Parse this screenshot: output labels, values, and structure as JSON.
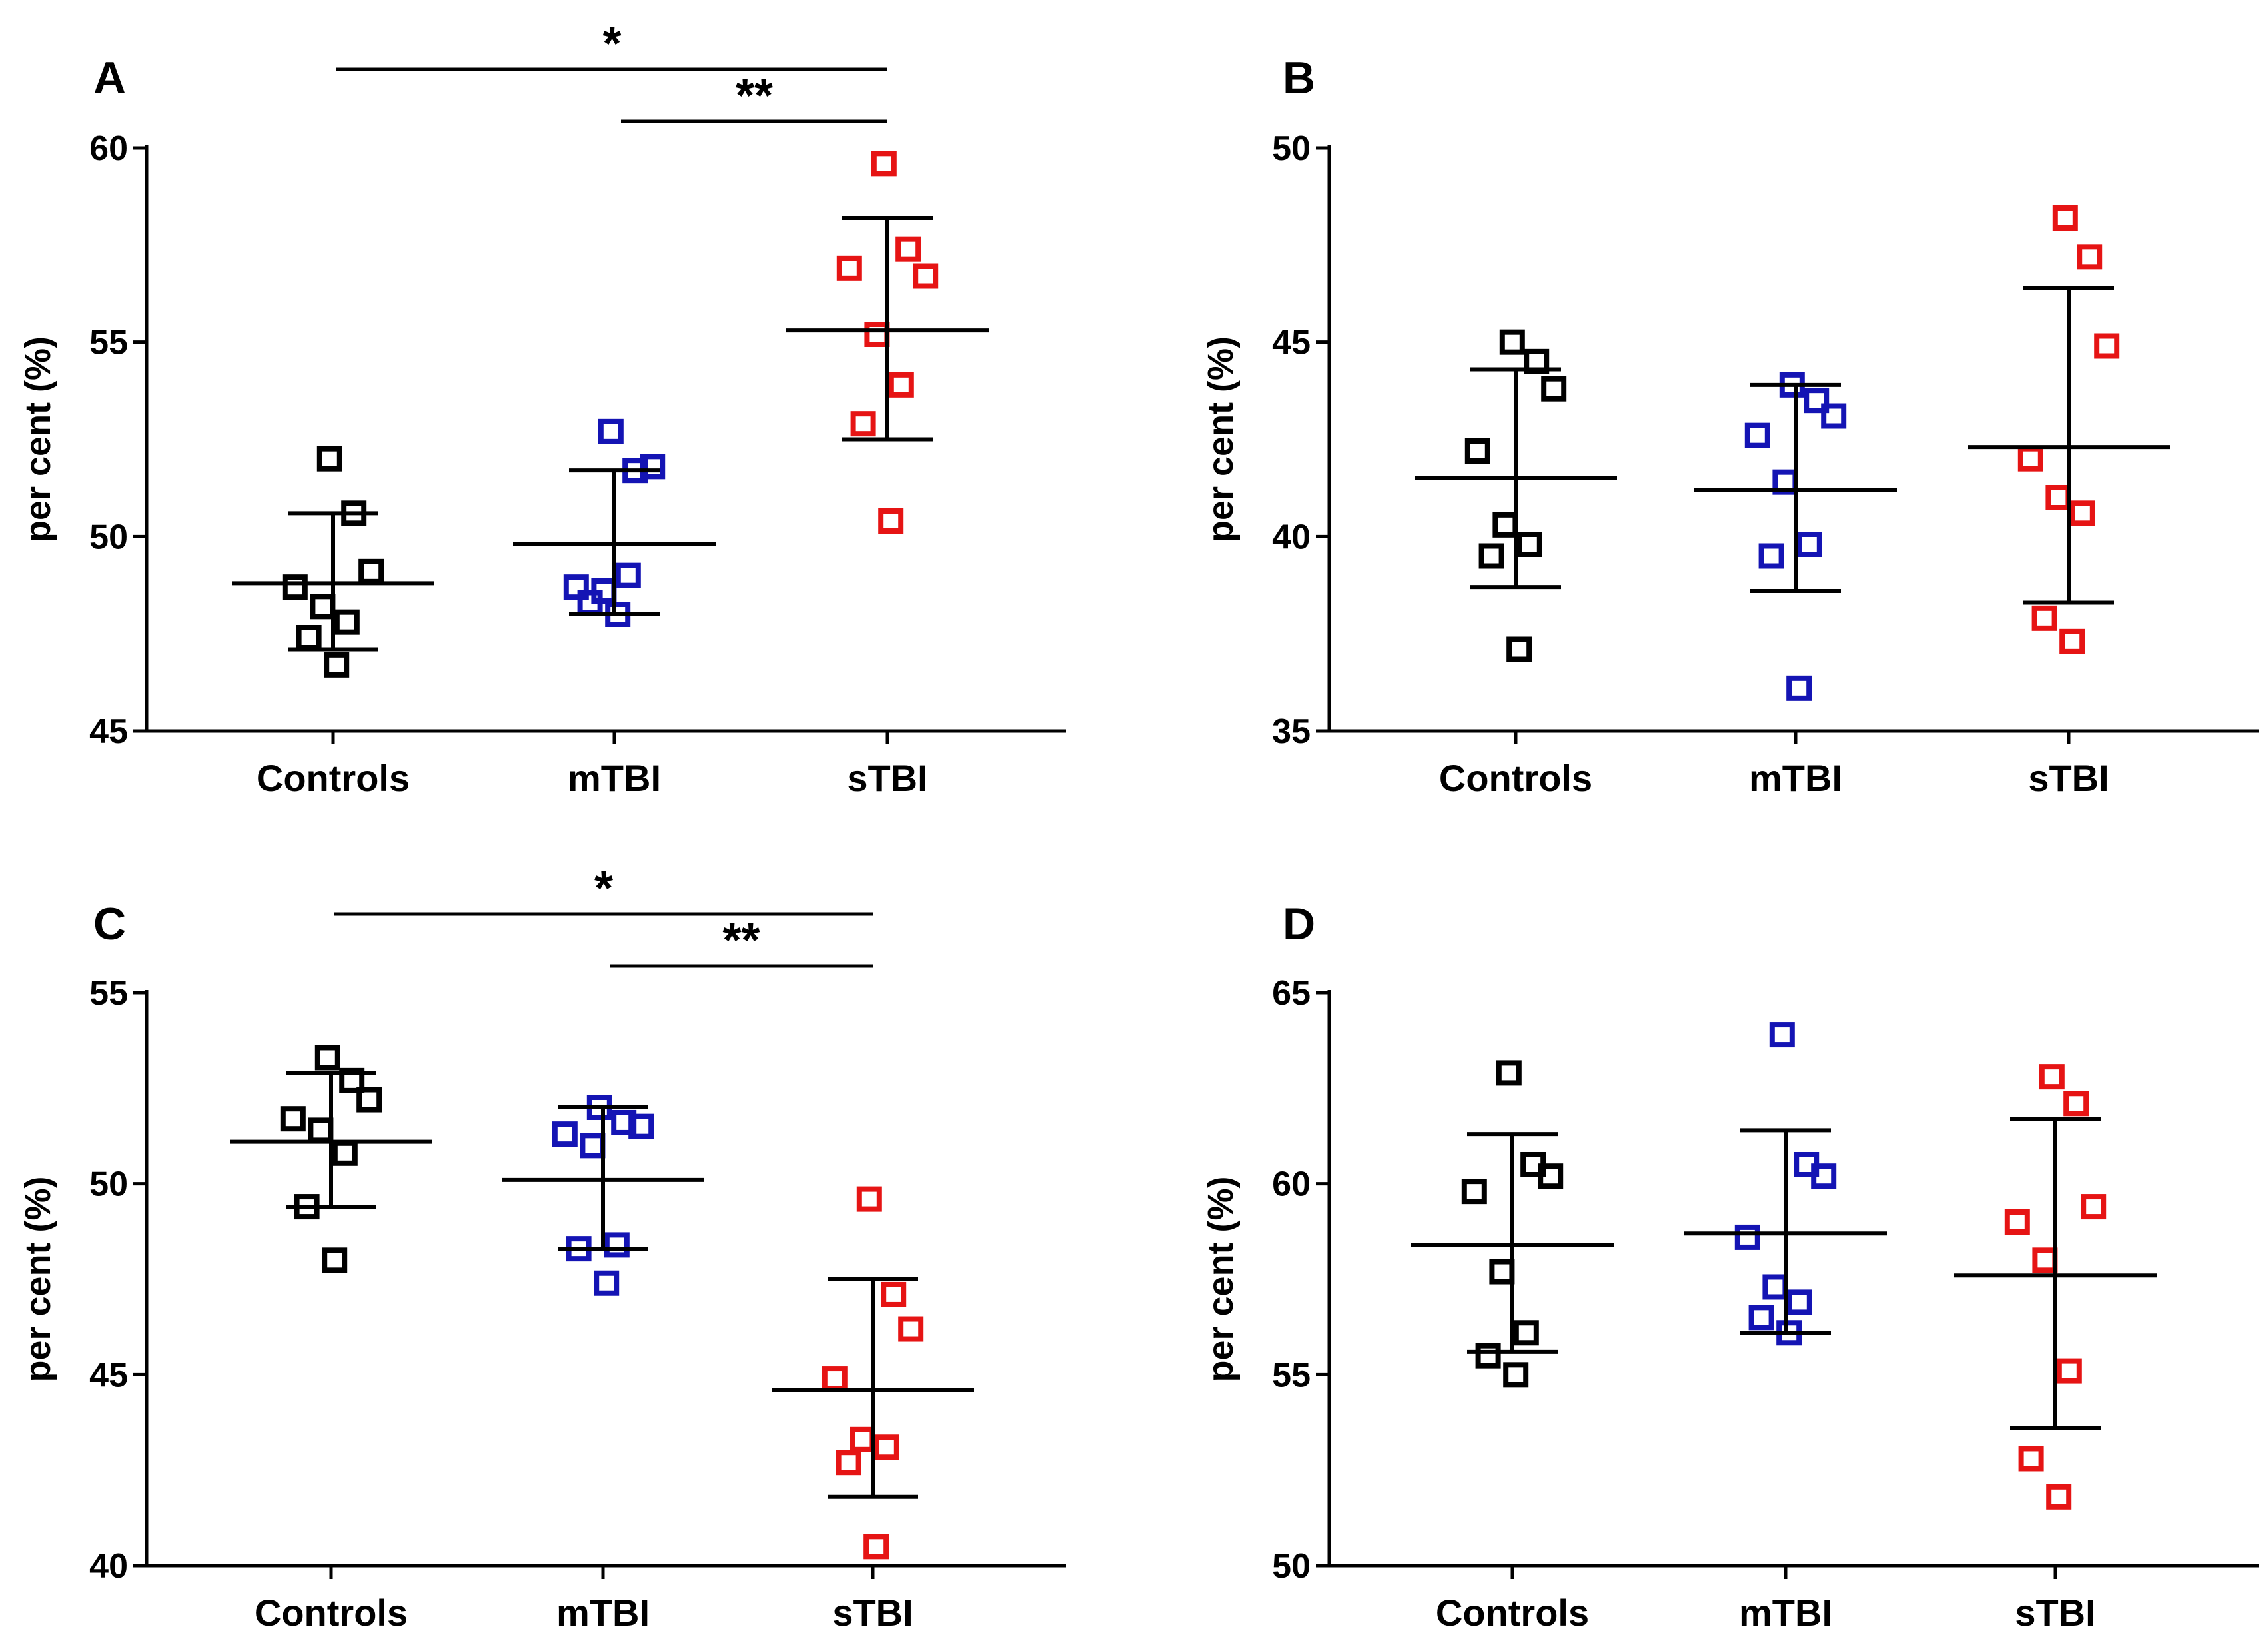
{
  "chart_data": [
    {
      "type": "scatter",
      "panel": "A",
      "ylabel": "per cent (%)",
      "ylim": [
        45,
        60
      ],
      "yticks": [
        45,
        50,
        55,
        60
      ],
      "categories": [
        "Controls",
        "mTBI",
        "sTBI"
      ],
      "series": [
        {
          "category": "Controls",
          "color": "#000000",
          "values": [
            52.0,
            50.6,
            49.1,
            48.7,
            48.2,
            47.8,
            47.4,
            46.7
          ],
          "mean": 48.8,
          "sd_upper": 50.6,
          "sd_lower": 47.1
        },
        {
          "category": "mTBI",
          "color": "#1414b4",
          "values": [
            52.7,
            51.7,
            51.8,
            48.7,
            48.6,
            49.0,
            48.3,
            48.0
          ],
          "mean": 49.8,
          "sd_upper": 51.7,
          "sd_lower": 48.0
        },
        {
          "category": "sTBI",
          "color": "#e61414",
          "values": [
            59.6,
            57.4,
            56.7,
            56.9,
            55.2,
            53.9,
            52.9,
            50.4
          ],
          "mean": 55.3,
          "sd_upper": 58.2,
          "sd_lower": 52.5
        }
      ],
      "significance": [
        {
          "from": "Controls",
          "to": "sTBI",
          "label": "*"
        },
        {
          "from": "mTBI",
          "to": "sTBI",
          "label": "**"
        }
      ]
    },
    {
      "type": "scatter",
      "panel": "B",
      "ylabel": "per cent (%)",
      "ylim": [
        35,
        50
      ],
      "yticks": [
        35,
        40,
        45,
        50
      ],
      "categories": [
        "Controls",
        "mTBI",
        "sTBI"
      ],
      "series": [
        {
          "category": "Controls",
          "color": "#000000",
          "values": [
            45.0,
            44.5,
            43.8,
            42.2,
            40.3,
            39.8,
            39.5,
            37.1
          ],
          "mean": 41.5,
          "sd_upper": 44.3,
          "sd_lower": 38.7
        },
        {
          "category": "mTBI",
          "color": "#1414b4",
          "values": [
            43.9,
            43.5,
            43.1,
            42.6,
            41.4,
            39.8,
            39.5,
            36.1
          ],
          "mean": 41.2,
          "sd_upper": 43.9,
          "sd_lower": 38.6
        },
        {
          "category": "sTBI",
          "color": "#e61414",
          "values": [
            48.2,
            47.2,
            44.9,
            42.0,
            41.0,
            40.6,
            37.9,
            37.3
          ],
          "mean": 42.3,
          "sd_upper": 46.4,
          "sd_lower": 38.3
        }
      ],
      "significance": []
    },
    {
      "type": "scatter",
      "panel": "C",
      "ylabel": "per cent (%)",
      "ylim": [
        40,
        55
      ],
      "yticks": [
        40,
        45,
        50,
        55
      ],
      "categories": [
        "Controls",
        "mTBI",
        "sTBI"
      ],
      "series": [
        {
          "category": "Controls",
          "color": "#000000",
          "values": [
            53.3,
            52.7,
            52.2,
            51.7,
            51.4,
            50.8,
            49.4,
            48.0
          ],
          "mean": 51.1,
          "sd_upper": 52.9,
          "sd_lower": 49.4
        },
        {
          "category": "mTBI",
          "color": "#1414b4",
          "values": [
            52.0,
            51.6,
            51.5,
            51.3,
            51.0,
            48.4,
            48.3,
            47.4
          ],
          "mean": 50.1,
          "sd_upper": 52.0,
          "sd_lower": 48.3
        },
        {
          "category": "sTBI",
          "color": "#e61414",
          "values": [
            49.6,
            47.1,
            46.2,
            44.9,
            43.3,
            43.1,
            42.7,
            40.5
          ],
          "mean": 44.6,
          "sd_upper": 47.5,
          "sd_lower": 41.8
        }
      ],
      "significance": [
        {
          "from": "Controls",
          "to": "sTBI",
          "label": "*"
        },
        {
          "from": "mTBI",
          "to": "sTBI",
          "label": "**"
        }
      ]
    },
    {
      "type": "scatter",
      "panel": "D",
      "ylabel": "per cent (%)",
      "ylim": [
        50,
        65
      ],
      "yticks": [
        50,
        55,
        60,
        65
      ],
      "categories": [
        "Controls",
        "mTBI",
        "sTBI"
      ],
      "series": [
        {
          "category": "Controls",
          "color": "#000000",
          "values": [
            62.9,
            60.5,
            60.2,
            59.8,
            57.7,
            56.1,
            55.5,
            55.0
          ],
          "mean": 58.4,
          "sd_upper": 61.3,
          "sd_lower": 55.6
        },
        {
          "category": "mTBI",
          "color": "#1414b4",
          "values": [
            63.9,
            60.5,
            60.2,
            58.6,
            57.3,
            56.9,
            56.5,
            56.1
          ],
          "mean": 58.7,
          "sd_upper": 61.4,
          "sd_lower": 56.1
        },
        {
          "category": "sTBI",
          "color": "#e61414",
          "values": [
            62.8,
            62.1,
            59.4,
            59.0,
            58.0,
            55.1,
            52.8,
            51.8
          ],
          "mean": 57.6,
          "sd_upper": 61.7,
          "sd_lower": 53.6
        }
      ],
      "significance": []
    }
  ]
}
